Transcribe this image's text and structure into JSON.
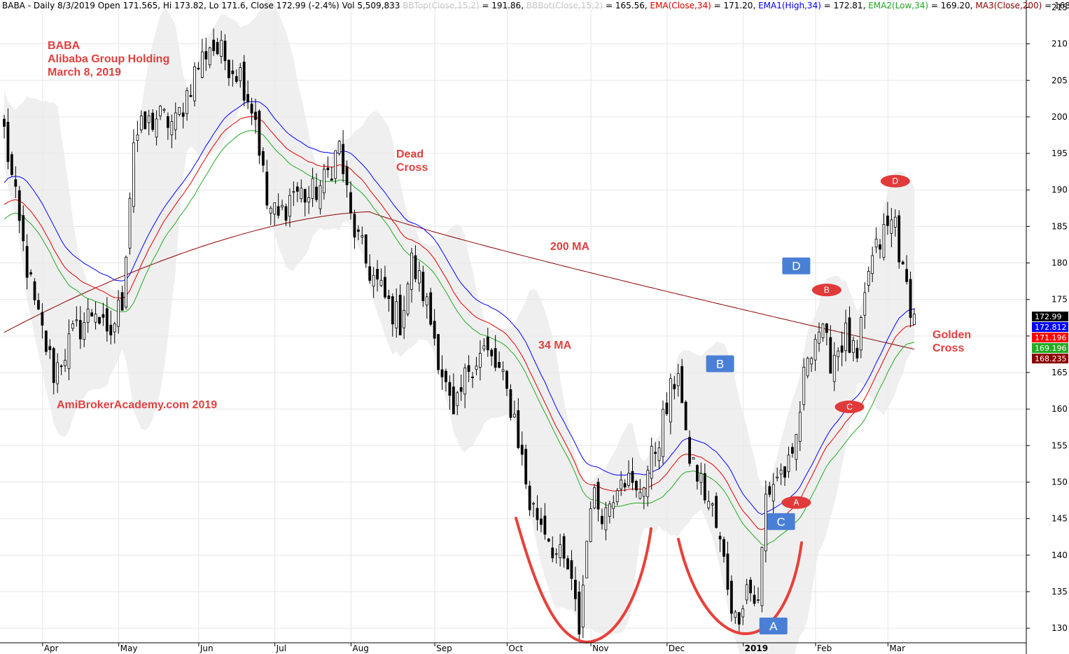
{
  "header": {
    "parts": [
      {
        "text": "BABA - Daily 8/3/2019 Open 171.565, Hi 173.82, Lo 171.6, Close 172.99 (-2.4%) Vol 5,509,833 ",
        "color": "#000000"
      },
      {
        "text": "BBTop(Close,15,2)",
        "color": "#c8c8c8"
      },
      {
        "text": " = 191.86, ",
        "color": "#000000"
      },
      {
        "text": "BBBot(Close,15,2)",
        "color": "#c8c8c8"
      },
      {
        "text": " = 165.56, ",
        "color": "#000000"
      },
      {
        "text": "EMA(Close,34)",
        "color": "#e00000"
      },
      {
        "text": " = 171.20, ",
        "color": "#000000"
      },
      {
        "text": "EMA1(High,34)",
        "color": "#0000ff"
      },
      {
        "text": " = 172.81, ",
        "color": "#000000"
      },
      {
        "text": "EMA2(Low,34)",
        "color": "#22aa22"
      },
      {
        "text": " = 169.20, ",
        "color": "#000000"
      },
      {
        "text": "MA3(Close,200)",
        "color": "#8b0000"
      },
      {
        "text": " = 168.23",
        "color": "#000000"
      }
    ]
  },
  "annotations": {
    "title_lines": [
      "BABA",
      "Alibaba Group Holding",
      "March 8, 2019"
    ],
    "dead_cross": [
      "Dead",
      "Cross"
    ],
    "ma200_label": "200 MA",
    "ma34_label": "34 MA",
    "golden_cross": [
      "Golden",
      "Cross"
    ],
    "watermark": "AmiBrokerAcademy.com  2019",
    "text_color": "#e04040"
  },
  "pattern_labels": {
    "boxes": [
      {
        "label": "A",
        "x": 202,
        "y": 130.3
      },
      {
        "label": "B",
        "x": 188,
        "y": 166.2
      },
      {
        "label": "C",
        "x": 204,
        "y": 144.6
      },
      {
        "label": "D",
        "x": 208,
        "y": 179.6
      }
    ],
    "ovals": [
      {
        "label": "A",
        "x": 208,
        "y": 147.2
      },
      {
        "label": "B",
        "x": 216,
        "y": 176.3
      },
      {
        "label": "C",
        "x": 222,
        "y": 160.3
      },
      {
        "label": "D",
        "x": 234,
        "y": 191.2
      }
    ],
    "box_color": "#4a7fd6",
    "oval_color": "#e03a3a"
  },
  "chart_data": {
    "type": "candlestick",
    "ylim": [
      128,
      216
    ],
    "y_ticks": [
      130,
      135,
      140,
      145,
      150,
      155,
      160,
      165,
      170,
      175,
      180,
      185,
      190,
      195,
      200,
      205,
      210,
      215
    ],
    "x_ticks": [
      {
        "label": "Apr",
        "i": 11
      },
      {
        "label": "May",
        "i": 31
      },
      {
        "label": "Jun",
        "i": 52
      },
      {
        "label": "Jul",
        "i": 72
      },
      {
        "label": "Aug",
        "i": 92
      },
      {
        "label": "Sep",
        "i": 114
      },
      {
        "label": "Oct",
        "i": 133
      },
      {
        "label": "Nov",
        "i": 155
      },
      {
        "label": "Dec",
        "i": 175
      },
      {
        "label": "2019",
        "i": 195
      },
      {
        "label": "Feb",
        "i": 214
      },
      {
        "label": "Mar",
        "i": 233
      }
    ],
    "bars": 240,
    "last_values": [
      {
        "value": "172.99",
        "bg": "#000000",
        "fg": "#ffffff"
      },
      {
        "value": "172.812",
        "bg": "#0000ff",
        "fg": "#ffffff"
      },
      {
        "value": "171.196",
        "bg": "#ff0000",
        "fg": "#ffffff"
      },
      {
        "value": "169.196",
        "bg": "#22aa22",
        "fg": "#ffffff"
      },
      {
        "value": "168.235",
        "bg": "#8b0000",
        "fg": "#ffffff"
      }
    ],
    "anchors": [
      [
        0,
        198
      ],
      [
        4,
        185
      ],
      [
        8,
        174
      ],
      [
        13,
        165
      ],
      [
        18,
        170
      ],
      [
        24,
        174
      ],
      [
        27,
        169
      ],
      [
        31,
        175
      ],
      [
        34,
        197
      ],
      [
        40,
        200
      ],
      [
        45,
        199
      ],
      [
        50,
        206
      ],
      [
        54,
        210
      ],
      [
        58,
        208
      ],
      [
        62,
        206
      ],
      [
        66,
        200
      ],
      [
        69,
        188
      ],
      [
        72,
        186
      ],
      [
        76,
        190
      ],
      [
        80,
        189
      ],
      [
        84,
        191
      ],
      [
        88,
        196
      ],
      [
        91,
        186
      ],
      [
        95,
        180
      ],
      [
        100,
        175
      ],
      [
        104,
        172
      ],
      [
        107,
        180
      ],
      [
        110,
        176
      ],
      [
        113,
        170
      ],
      [
        118,
        158
      ],
      [
        122,
        166
      ],
      [
        126,
        168
      ],
      [
        130,
        165
      ],
      [
        134,
        159
      ],
      [
        138,
        147
      ],
      [
        142,
        144
      ],
      [
        145,
        140
      ],
      [
        148,
        138
      ],
      [
        151,
        130
      ],
      [
        154,
        148
      ],
      [
        158,
        146
      ],
      [
        162,
        152
      ],
      [
        166,
        148
      ],
      [
        170,
        153
      ],
      [
        174,
        160
      ],
      [
        177,
        166
      ],
      [
        179,
        155
      ],
      [
        182,
        151
      ],
      [
        186,
        146
      ],
      [
        189,
        139
      ],
      [
        192,
        131
      ],
      [
        195,
        136
      ],
      [
        198,
        133
      ],
      [
        200,
        148
      ],
      [
        203,
        151
      ],
      [
        207,
        152
      ],
      [
        211,
        168
      ],
      [
        214,
        171
      ],
      [
        217,
        167
      ],
      [
        221,
        170
      ],
      [
        224,
        166
      ],
      [
        227,
        179
      ],
      [
        231,
        184
      ],
      [
        234,
        186
      ],
      [
        236,
        178
      ],
      [
        239,
        173
      ]
    ],
    "series": [
      "Close",
      "EMA(Close,34)",
      "EMA1(High,34)",
      "EMA2(Low,34)",
      "MA3(Close,200)",
      "BBTop(Close,15,2)",
      "BBBot(Close,15,2)"
    ],
    "colors": {
      "ema_close": "#e00000",
      "ema_high": "#0000ff",
      "ema_low": "#22aa22",
      "ma200": "#8b0000",
      "band": "#eaeaea"
    }
  }
}
